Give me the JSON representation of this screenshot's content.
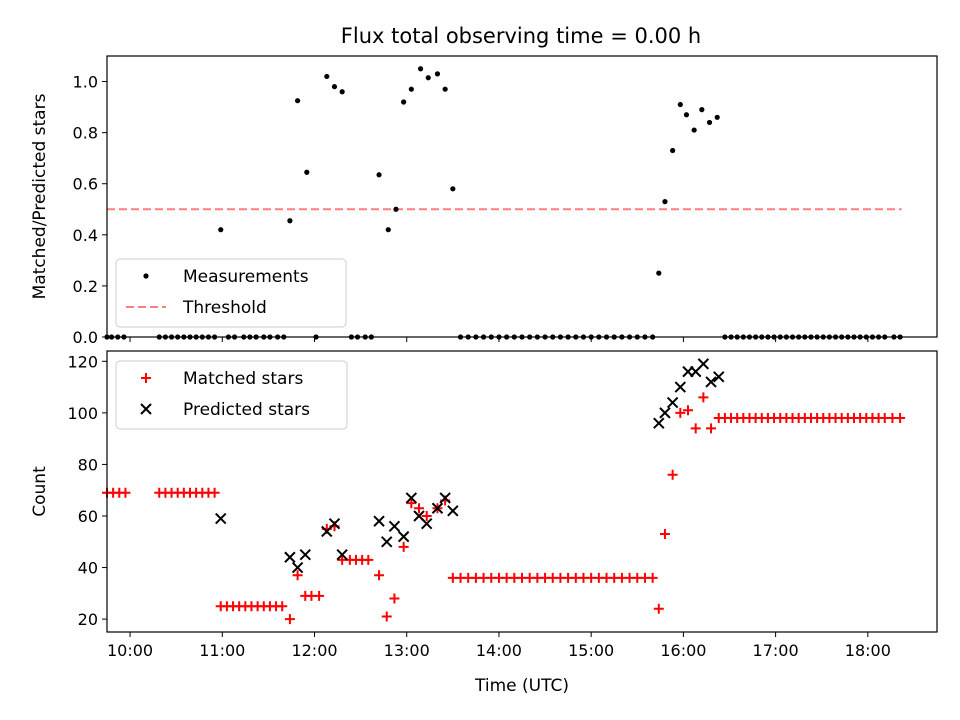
{
  "chart_data": [
    {
      "type": "scatter",
      "title": "Flux total observing time = 0.00 h",
      "xlabel": "",
      "ylabel": "Matched/Predicted stars",
      "xlim": [
        "09:45",
        "18:45"
      ],
      "ylim": [
        0,
        1.1
      ],
      "yticks": [
        "0.0",
        "0.2",
        "0.4",
        "0.6",
        "0.8",
        "1.0"
      ],
      "xticks": [
        "10:00",
        "11:00",
        "12:00",
        "13:00",
        "14:00",
        "15:00",
        "16:00",
        "17:00",
        "18:00"
      ],
      "legend": {
        "position": "lower-left",
        "entries": [
          "Measurements",
          "Threshold"
        ]
      },
      "threshold": {
        "name": "Threshold",
        "value": 0.5,
        "x_range": [
          "09:45",
          "18:22"
        ],
        "color": "#ff7f7f",
        "style": "dashed"
      },
      "series": [
        {
          "name": "Measurements",
          "color": "#000000",
          "marker": "dot",
          "points": [
            [
              "09:45",
              0
            ],
            [
              "09:48",
              0
            ],
            [
              "09:52",
              0
            ],
            [
              "09:56",
              0
            ],
            [
              "10:19",
              0
            ],
            [
              "10:23",
              0
            ],
            [
              "10:27",
              0
            ],
            [
              "10:31",
              0
            ],
            [
              "10:35",
              0
            ],
            [
              "10:39",
              0
            ],
            [
              "10:43",
              0
            ],
            [
              "10:47",
              0
            ],
            [
              "10:51",
              0
            ],
            [
              "10:55",
              0
            ],
            [
              "10:59",
              0.42
            ],
            [
              "11:04",
              0
            ],
            [
              "11:08",
              0
            ],
            [
              "11:14",
              0
            ],
            [
              "11:18",
              0
            ],
            [
              "11:22",
              0
            ],
            [
              "11:27",
              0
            ],
            [
              "11:31",
              0
            ],
            [
              "11:36",
              0
            ],
            [
              "11:40",
              0
            ],
            [
              "11:44",
              0.455
            ],
            [
              "11:49",
              0.925
            ],
            [
              "11:55",
              0.645
            ],
            [
              "12:01",
              0
            ],
            [
              "12:08",
              1.02
            ],
            [
              "12:13",
              0.98
            ],
            [
              "12:18",
              0.96
            ],
            [
              "12:24",
              0
            ],
            [
              "12:28",
              0
            ],
            [
              "12:33",
              0
            ],
            [
              "12:37",
              0
            ],
            [
              "12:42",
              0.635
            ],
            [
              "12:48",
              0.42
            ],
            [
              "12:53",
              0.5
            ],
            [
              "12:58",
              0.92
            ],
            [
              "13:03",
              0.97
            ],
            [
              "13:09",
              1.05
            ],
            [
              "13:14",
              1.015
            ],
            [
              "13:20",
              1.03
            ],
            [
              "13:25",
              0.97
            ],
            [
              "13:30",
              0.58
            ],
            [
              "13:35",
              0
            ],
            [
              "13:40",
              0
            ],
            [
              "13:45",
              0
            ],
            [
              "13:50",
              0
            ],
            [
              "13:55",
              0
            ],
            [
              "14:00",
              0
            ],
            [
              "14:05",
              0
            ],
            [
              "14:10",
              0
            ],
            [
              "14:15",
              0
            ],
            [
              "14:20",
              0
            ],
            [
              "14:25",
              0
            ],
            [
              "14:30",
              0
            ],
            [
              "14:35",
              0
            ],
            [
              "14:40",
              0
            ],
            [
              "14:45",
              0
            ],
            [
              "14:50",
              0
            ],
            [
              "14:55",
              0
            ],
            [
              "15:00",
              0
            ],
            [
              "15:05",
              0
            ],
            [
              "15:10",
              0
            ],
            [
              "15:15",
              0
            ],
            [
              "15:20",
              0
            ],
            [
              "15:25",
              0
            ],
            [
              "15:30",
              0
            ],
            [
              "15:35",
              0
            ],
            [
              "15:40",
              0
            ],
            [
              "15:44",
              0.25
            ],
            [
              "15:48",
              0.53
            ],
            [
              "15:53",
              0.73
            ],
            [
              "15:58",
              0.91
            ],
            [
              "16:02",
              0.87
            ],
            [
              "16:07",
              0.81
            ],
            [
              "16:12",
              0.89
            ],
            [
              "16:17",
              0.84
            ],
            [
              "16:22",
              0.86
            ],
            [
              "16:27",
              0
            ],
            [
              "16:31",
              0
            ],
            [
              "16:35",
              0
            ],
            [
              "16:39",
              0
            ],
            [
              "16:43",
              0
            ],
            [
              "16:47",
              0
            ],
            [
              "16:51",
              0
            ],
            [
              "16:55",
              0
            ],
            [
              "16:59",
              0
            ],
            [
              "17:03",
              0
            ],
            [
              "17:07",
              0
            ],
            [
              "17:11",
              0
            ],
            [
              "17:15",
              0
            ],
            [
              "17:19",
              0
            ],
            [
              "17:23",
              0
            ],
            [
              "17:27",
              0
            ],
            [
              "17:31",
              0
            ],
            [
              "17:35",
              0
            ],
            [
              "17:39",
              0
            ],
            [
              "17:43",
              0
            ],
            [
              "17:47",
              0
            ],
            [
              "17:51",
              0
            ],
            [
              "17:55",
              0
            ],
            [
              "17:59",
              0
            ],
            [
              "18:03",
              0
            ],
            [
              "18:07",
              0
            ],
            [
              "18:11",
              0
            ],
            [
              "18:17",
              0
            ],
            [
              "18:21",
              0
            ]
          ]
        }
      ]
    },
    {
      "type": "scatter",
      "title": "",
      "xlabel": "Time (UTC)",
      "ylabel": "Count",
      "xlim": [
        "09:45",
        "18:45"
      ],
      "ylim": [
        15,
        124
      ],
      "yticks": [
        "20",
        "40",
        "60",
        "80",
        "100",
        "120"
      ],
      "xticks": [
        "10:00",
        "11:00",
        "12:00",
        "13:00",
        "14:00",
        "15:00",
        "16:00",
        "17:00",
        "18:00"
      ],
      "legend": {
        "position": "top-left",
        "entries": [
          "Matched stars",
          "Predicted stars"
        ]
      },
      "series": [
        {
          "name": "Matched stars",
          "color": "#ff0000",
          "marker": "plus",
          "points": [
            [
              "09:45",
              69
            ],
            [
              "09:49",
              69
            ],
            [
              "09:53",
              69
            ],
            [
              "09:57",
              69
            ],
            [
              "10:19",
              69
            ],
            [
              "10:23",
              69
            ],
            [
              "10:27",
              69
            ],
            [
              "10:31",
              69
            ],
            [
              "10:35",
              69
            ],
            [
              "10:39",
              69
            ],
            [
              "10:43",
              69
            ],
            [
              "10:47",
              69
            ],
            [
              "10:51",
              69
            ],
            [
              "10:55",
              69
            ],
            [
              "10:59",
              25
            ],
            [
              "11:03",
              25
            ],
            [
              "11:07",
              25
            ],
            [
              "11:11",
              25
            ],
            [
              "11:15",
              25
            ],
            [
              "11:19",
              25
            ],
            [
              "11:23",
              25
            ],
            [
              "11:27",
              25
            ],
            [
              "11:31",
              25
            ],
            [
              "11:35",
              25
            ],
            [
              "11:39",
              25
            ],
            [
              "11:44",
              20
            ],
            [
              "11:49",
              37
            ],
            [
              "11:54",
              29
            ],
            [
              "11:58",
              29
            ],
            [
              "12:03",
              29
            ],
            [
              "12:08",
              55
            ],
            [
              "12:13",
              56
            ],
            [
              "12:18",
              43
            ],
            [
              "12:23",
              43
            ],
            [
              "12:27",
              43
            ],
            [
              "12:31",
              43
            ],
            [
              "12:35",
              43
            ],
            [
              "12:42",
              37
            ],
            [
              "12:47",
              21
            ],
            [
              "12:52",
              28
            ],
            [
              "12:58",
              48
            ],
            [
              "13:03",
              65
            ],
            [
              "13:08",
              63
            ],
            [
              "13:13",
              60
            ],
            [
              "13:20",
              63
            ],
            [
              "13:25",
              66
            ],
            [
              "13:30",
              36
            ],
            [
              "13:35",
              36
            ],
            [
              "13:40",
              36
            ],
            [
              "13:45",
              36
            ],
            [
              "13:50",
              36
            ],
            [
              "13:55",
              36
            ],
            [
              "14:00",
              36
            ],
            [
              "14:05",
              36
            ],
            [
              "14:10",
              36
            ],
            [
              "14:15",
              36
            ],
            [
              "14:20",
              36
            ],
            [
              "14:25",
              36
            ],
            [
              "14:30",
              36
            ],
            [
              "14:35",
              36
            ],
            [
              "14:40",
              36
            ],
            [
              "14:45",
              36
            ],
            [
              "14:50",
              36
            ],
            [
              "14:55",
              36
            ],
            [
              "15:00",
              36
            ],
            [
              "15:05",
              36
            ],
            [
              "15:10",
              36
            ],
            [
              "15:15",
              36
            ],
            [
              "15:20",
              36
            ],
            [
              "15:25",
              36
            ],
            [
              "15:30",
              36
            ],
            [
              "15:35",
              36
            ],
            [
              "15:40",
              36
            ],
            [
              "15:44",
              24
            ],
            [
              "15:48",
              53
            ],
            [
              "15:53",
              76
            ],
            [
              "15:58",
              100
            ],
            [
              "16:03",
              101
            ],
            [
              "16:08",
              94
            ],
            [
              "16:13",
              106
            ],
            [
              "16:18",
              94
            ],
            [
              "16:23",
              98
            ],
            [
              "16:27",
              98
            ],
            [
              "16:31",
              98
            ],
            [
              "16:35",
              98
            ],
            [
              "16:39",
              98
            ],
            [
              "16:43",
              98
            ],
            [
              "16:47",
              98
            ],
            [
              "16:51",
              98
            ],
            [
              "16:55",
              98
            ],
            [
              "16:59",
              98
            ],
            [
              "17:03",
              98
            ],
            [
              "17:07",
              98
            ],
            [
              "17:11",
              98
            ],
            [
              "17:15",
              98
            ],
            [
              "17:19",
              98
            ],
            [
              "17:23",
              98
            ],
            [
              "17:27",
              98
            ],
            [
              "17:31",
              98
            ],
            [
              "17:35",
              98
            ],
            [
              "17:39",
              98
            ],
            [
              "17:43",
              98
            ],
            [
              "17:47",
              98
            ],
            [
              "17:51",
              98
            ],
            [
              "17:55",
              98
            ],
            [
              "17:59",
              98
            ],
            [
              "18:03",
              98
            ],
            [
              "18:07",
              98
            ],
            [
              "18:11",
              98
            ],
            [
              "18:16",
              98
            ],
            [
              "18:21",
              98
            ]
          ]
        },
        {
          "name": "Predicted stars",
          "color": "#000000",
          "marker": "x",
          "points": [
            [
              "10:59",
              59
            ],
            [
              "11:44",
              44
            ],
            [
              "11:49",
              40
            ],
            [
              "11:54",
              45
            ],
            [
              "12:08",
              54
            ],
            [
              "12:13",
              57
            ],
            [
              "12:18",
              45
            ],
            [
              "12:42",
              58
            ],
            [
              "12:47",
              50
            ],
            [
              "12:52",
              56
            ],
            [
              "12:58",
              52
            ],
            [
              "13:03",
              67
            ],
            [
              "13:08",
              60
            ],
            [
              "13:13",
              57
            ],
            [
              "13:20",
              63
            ],
            [
              "13:25",
              67
            ],
            [
              "13:30",
              62
            ],
            [
              "15:44",
              96
            ],
            [
              "15:48",
              100
            ],
            [
              "15:53",
              104
            ],
            [
              "15:58",
              110
            ],
            [
              "16:03",
              116
            ],
            [
              "16:08",
              116
            ],
            [
              "16:13",
              119
            ],
            [
              "16:18",
              112
            ],
            [
              "16:23",
              114
            ]
          ]
        }
      ]
    }
  ]
}
